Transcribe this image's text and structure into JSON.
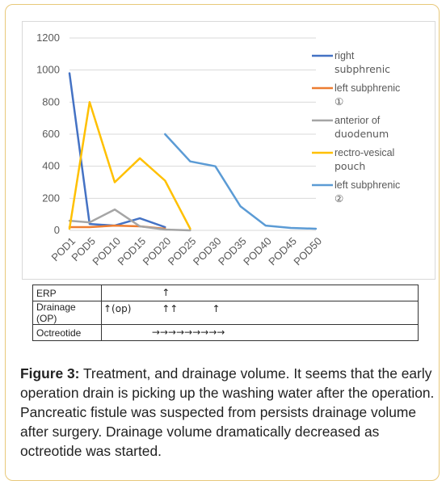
{
  "chart_data": {
    "type": "line",
    "categories": [
      "POD1",
      "POD5",
      "POD10",
      "POD15",
      "POD20",
      "POD25",
      "POD30",
      "POD35",
      "POD40",
      "POD45",
      "POD50"
    ],
    "ylim": [
      0,
      1200
    ],
    "yticks": [
      "0",
      "200",
      "400",
      "600",
      "800",
      "1000",
      "1200"
    ],
    "grid": true,
    "legend_position": "right",
    "series": [
      {
        "name": "right subphrenic",
        "color": "#4472c4",
        "points": [
          [
            1,
            980
          ],
          [
            5,
            40
          ],
          [
            10,
            30
          ],
          [
            15,
            75
          ],
          [
            20,
            20
          ]
        ]
      },
      {
        "name": "left subphrenic ①",
        "color": "#ed7d31",
        "points": [
          [
            1,
            20
          ],
          [
            5,
            20
          ],
          [
            10,
            30
          ],
          [
            15,
            25
          ],
          [
            20,
            10
          ]
        ]
      },
      {
        "name": "anterior of duodenum",
        "color": "#a5a5a5",
        "points": [
          [
            1,
            60
          ],
          [
            5,
            50
          ],
          [
            10,
            130
          ],
          [
            15,
            25
          ],
          [
            20,
            5
          ],
          [
            25,
            0
          ]
        ]
      },
      {
        "name": "rectro-vesical pouch",
        "color": "#ffc000",
        "points": [
          [
            1,
            10
          ],
          [
            5,
            800
          ],
          [
            10,
            300
          ],
          [
            15,
            450
          ],
          [
            20,
            310
          ],
          [
            25,
            10
          ]
        ]
      },
      {
        "name": "left subphrenic ②",
        "color": "#5b9bd5",
        "points": [
          [
            20,
            600
          ],
          [
            25,
            430
          ],
          [
            30,
            400
          ],
          [
            35,
            150
          ],
          [
            40,
            30
          ],
          [
            45,
            15
          ],
          [
            50,
            10
          ]
        ]
      }
    ],
    "legend_lines": [
      {
        "line1": "right",
        "line2": "subphrenic"
      },
      {
        "line1": "left subphrenic",
        "line2": "①"
      },
      {
        "line1": "anterior of",
        "line2": "duodenum"
      },
      {
        "line1": "rectro-vesical",
        "line2": "pouch"
      },
      {
        "line1": "left subphrenic",
        "line2": "②"
      }
    ]
  },
  "treatment_table": {
    "rows": [
      {
        "label": "ERP",
        "marks": [
          {
            "text": "↑",
            "pod": 20
          }
        ]
      },
      {
        "label": "Drainage (OP)",
        "marks": [
          {
            "text": "↑(op)",
            "pod": 1
          },
          {
            "text": "↑↑",
            "pod": 20
          },
          {
            "text": "↑",
            "pod": 30
          }
        ]
      },
      {
        "label": "Octreotide",
        "marks": [
          {
            "text": "→→→→→→→→→",
            "pod": 18
          }
        ]
      }
    ]
  },
  "caption": {
    "label": "Figure 3:",
    "text": " Treatment, and drainage volume. It seems that the early operation drain is picking up the washing water after the operation. Pancreatic fistule was suspected from persists drainage volume after surgery. Drainage volume dramatically decreased as octreotide was started."
  }
}
